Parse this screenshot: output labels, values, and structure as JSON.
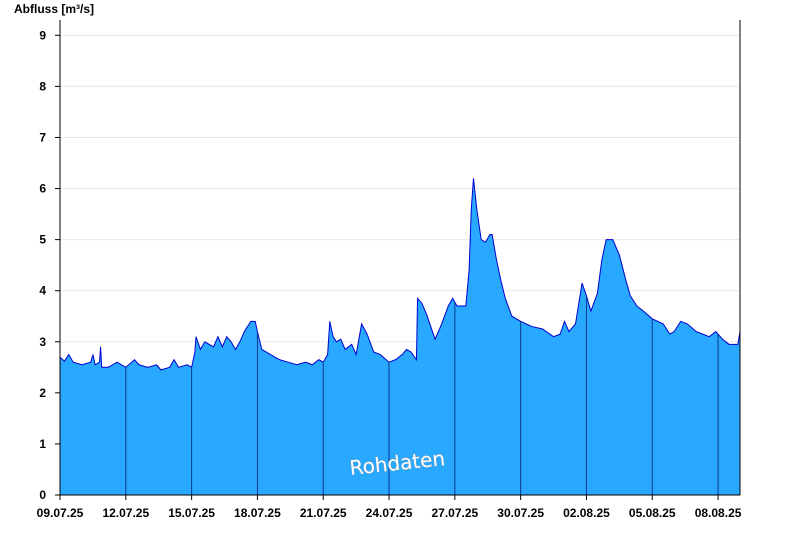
{
  "chart_data": {
    "type": "area",
    "ylabel": "Abfluss [m³/s]",
    "watermark": "Rohdaten",
    "ylim": [
      0,
      9.3
    ],
    "yticks": [
      "0",
      "1",
      "2",
      "3",
      "4",
      "5",
      "6",
      "7",
      "8",
      "9"
    ],
    "xticks": [
      "09.07.25",
      "12.07.25",
      "15.07.25",
      "18.07.25",
      "21.07.25",
      "24.07.25",
      "27.07.25",
      "30.07.25",
      "02.08.25",
      "05.08.25",
      "08.08.25"
    ],
    "x_range_days": [
      0,
      31
    ],
    "grid": "horizontal",
    "fill_color": "#29a8ff",
    "line_color": "#0000cc",
    "series": [
      {
        "points": [
          [
            0.0,
            2.7
          ],
          [
            0.2,
            2.62
          ],
          [
            0.4,
            2.75
          ],
          [
            0.6,
            2.6
          ],
          [
            1.0,
            2.55
          ],
          [
            1.4,
            2.6
          ],
          [
            1.5,
            2.75
          ],
          [
            1.6,
            2.55
          ],
          [
            1.8,
            2.6
          ],
          [
            1.85,
            2.9
          ],
          [
            1.9,
            2.5
          ],
          [
            2.2,
            2.5
          ],
          [
            2.6,
            2.6
          ],
          [
            3.0,
            2.5
          ],
          [
            3.4,
            2.65
          ],
          [
            3.6,
            2.55
          ],
          [
            4.0,
            2.5
          ],
          [
            4.4,
            2.55
          ],
          [
            4.6,
            2.45
          ],
          [
            5.0,
            2.5
          ],
          [
            5.2,
            2.65
          ],
          [
            5.4,
            2.5
          ],
          [
            5.8,
            2.55
          ],
          [
            6.0,
            2.5
          ],
          [
            6.15,
            2.8
          ],
          [
            6.2,
            3.1
          ],
          [
            6.4,
            2.85
          ],
          [
            6.6,
            3.0
          ],
          [
            6.8,
            2.95
          ],
          [
            7.0,
            2.9
          ],
          [
            7.2,
            3.1
          ],
          [
            7.4,
            2.9
          ],
          [
            7.6,
            3.1
          ],
          [
            7.8,
            3.0
          ],
          [
            8.0,
            2.85
          ],
          [
            8.2,
            3.0
          ],
          [
            8.4,
            3.2
          ],
          [
            8.7,
            3.4
          ],
          [
            8.9,
            3.4
          ],
          [
            9.0,
            3.2
          ],
          [
            9.2,
            2.85
          ],
          [
            9.6,
            2.75
          ],
          [
            10.0,
            2.65
          ],
          [
            10.4,
            2.6
          ],
          [
            10.8,
            2.55
          ],
          [
            11.2,
            2.6
          ],
          [
            11.5,
            2.55
          ],
          [
            11.8,
            2.65
          ],
          [
            12.0,
            2.6
          ],
          [
            12.2,
            2.75
          ],
          [
            12.3,
            3.4
          ],
          [
            12.45,
            3.1
          ],
          [
            12.6,
            3.0
          ],
          [
            12.8,
            3.05
          ],
          [
            13.0,
            2.85
          ],
          [
            13.3,
            2.95
          ],
          [
            13.5,
            2.75
          ],
          [
            13.75,
            3.35
          ],
          [
            14.0,
            3.15
          ],
          [
            14.3,
            2.8
          ],
          [
            14.6,
            2.75
          ],
          [
            15.0,
            2.6
          ],
          [
            15.3,
            2.65
          ],
          [
            15.6,
            2.75
          ],
          [
            15.8,
            2.85
          ],
          [
            16.0,
            2.8
          ],
          [
            16.25,
            2.65
          ],
          [
            16.3,
            3.85
          ],
          [
            16.5,
            3.75
          ],
          [
            16.7,
            3.55
          ],
          [
            16.9,
            3.3
          ],
          [
            17.1,
            3.05
          ],
          [
            17.4,
            3.35
          ],
          [
            17.7,
            3.7
          ],
          [
            17.9,
            3.85
          ],
          [
            18.1,
            3.7
          ],
          [
            18.5,
            3.7
          ],
          [
            18.65,
            4.4
          ],
          [
            18.75,
            5.6
          ],
          [
            18.85,
            6.2
          ],
          [
            19.0,
            5.6
          ],
          [
            19.2,
            5.0
          ],
          [
            19.4,
            4.95
          ],
          [
            19.6,
            5.1
          ],
          [
            19.7,
            5.1
          ],
          [
            19.9,
            4.6
          ],
          [
            20.1,
            4.2
          ],
          [
            20.3,
            3.85
          ],
          [
            20.6,
            3.5
          ],
          [
            21.0,
            3.4
          ],
          [
            21.5,
            3.3
          ],
          [
            22.0,
            3.25
          ],
          [
            22.5,
            3.1
          ],
          [
            22.8,
            3.15
          ],
          [
            23.0,
            3.4
          ],
          [
            23.2,
            3.2
          ],
          [
            23.5,
            3.35
          ],
          [
            23.8,
            4.15
          ],
          [
            24.0,
            3.9
          ],
          [
            24.2,
            3.6
          ],
          [
            24.5,
            3.95
          ],
          [
            24.7,
            4.6
          ],
          [
            24.9,
            5.0
          ],
          [
            25.2,
            5.0
          ],
          [
            25.5,
            4.7
          ],
          [
            25.8,
            4.2
          ],
          [
            26.0,
            3.9
          ],
          [
            26.3,
            3.7
          ],
          [
            26.6,
            3.6
          ],
          [
            27.0,
            3.45
          ],
          [
            27.5,
            3.35
          ],
          [
            27.8,
            3.15
          ],
          [
            28.0,
            3.2
          ],
          [
            28.3,
            3.4
          ],
          [
            28.6,
            3.35
          ],
          [
            29.0,
            3.2
          ],
          [
            29.3,
            3.15
          ],
          [
            29.6,
            3.1
          ],
          [
            29.9,
            3.2
          ],
          [
            30.2,
            3.05
          ],
          [
            30.5,
            2.95
          ],
          [
            30.9,
            2.95
          ],
          [
            31.0,
            3.2
          ]
        ]
      }
    ]
  }
}
